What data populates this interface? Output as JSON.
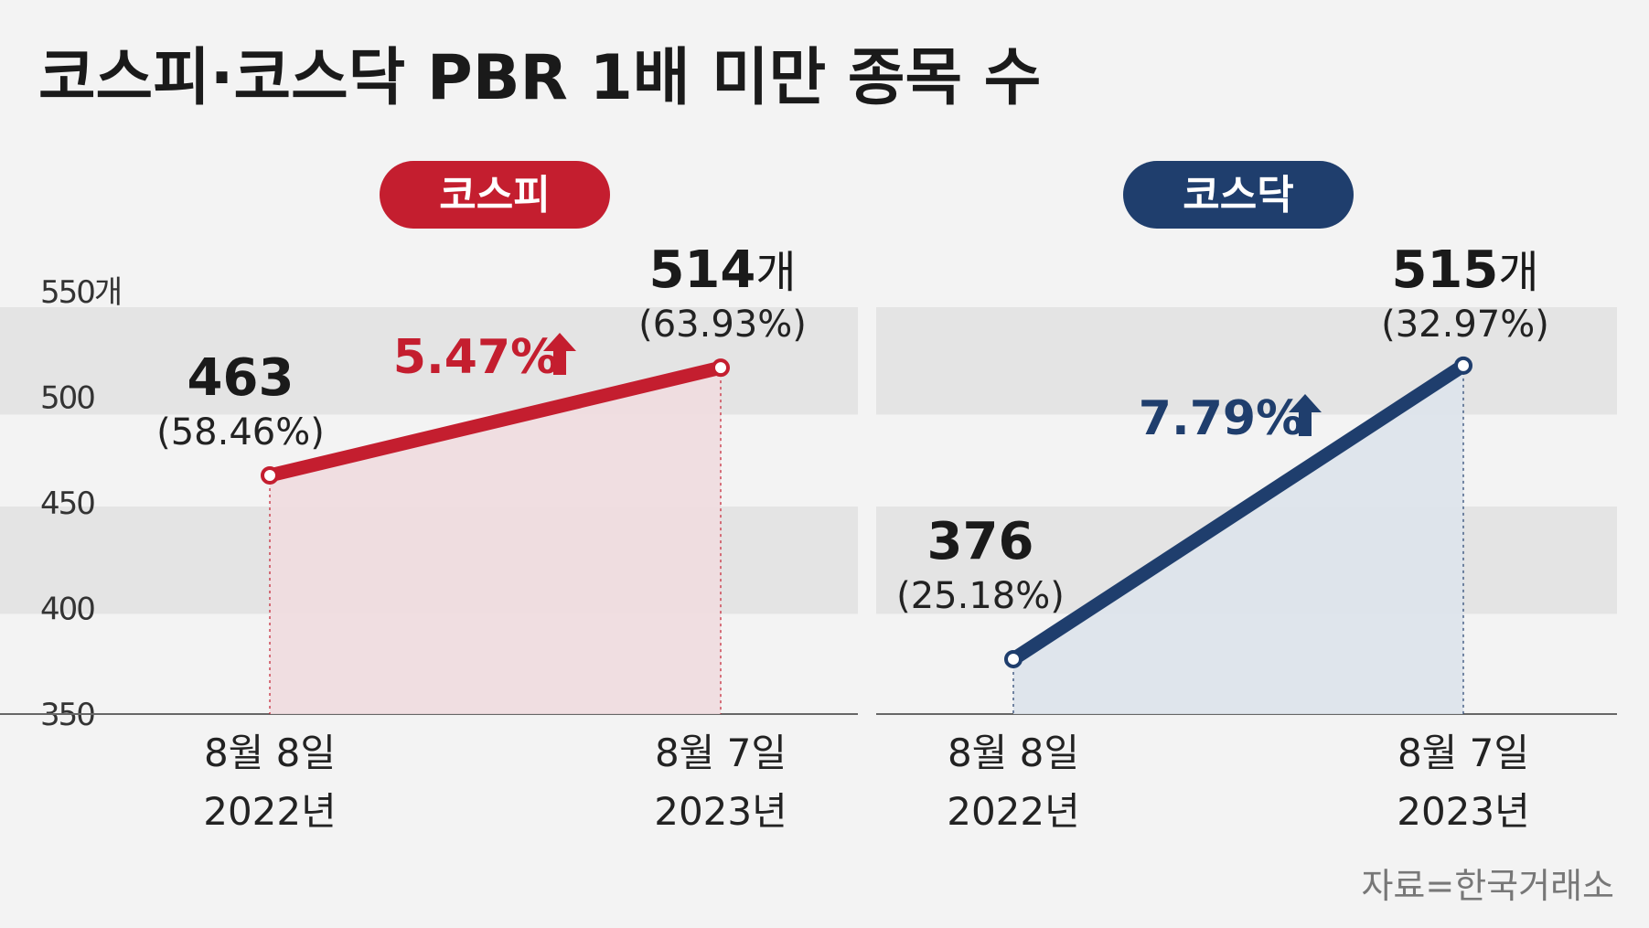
{
  "title": "코스피·코스닥 PBR 1배 미만 종목 수",
  "source": "자료=한국거래소",
  "colors": {
    "kospi": "#c41e2f",
    "kospi_fill": "#f0dcdf",
    "kosdaq": "#1f3e6d",
    "kosdaq_fill": "#dde3eb",
    "band": "#e4e4e4",
    "background": "#f3f3f3"
  },
  "chart_data": [
    {
      "type": "area",
      "title": "코스피",
      "unit": "개",
      "y_tick_labels": [
        "550개",
        "500",
        "450",
        "400",
        "350"
      ],
      "y_ticks": [
        550,
        500,
        450,
        400,
        350
      ],
      "ylim": [
        350,
        550
      ],
      "x": [
        {
          "date": "8월 8일",
          "year": "2022년"
        },
        {
          "date": "8월 7일",
          "year": "2023년"
        }
      ],
      "values": [
        463,
        514
      ],
      "value_labels": [
        "463",
        "514"
      ],
      "unit_suffixes": [
        "",
        "개"
      ],
      "percent_labels": [
        "(58.46%)",
        "(63.93%)"
      ],
      "change_label": "5.47%",
      "change_direction": "up"
    },
    {
      "type": "area",
      "title": "코스닥",
      "unit": "개",
      "y_ticks": [
        550,
        500,
        450,
        400,
        350
      ],
      "ylim": [
        350,
        550
      ],
      "x": [
        {
          "date": "8월 8일",
          "year": "2022년"
        },
        {
          "date": "8월 7일",
          "year": "2023년"
        }
      ],
      "values": [
        376,
        515
      ],
      "value_labels": [
        "376",
        "515"
      ],
      "unit_suffixes": [
        "",
        "개"
      ],
      "percent_labels": [
        "(25.18%)",
        "(32.97%)"
      ],
      "change_label": "7.79%",
      "change_direction": "up"
    }
  ]
}
